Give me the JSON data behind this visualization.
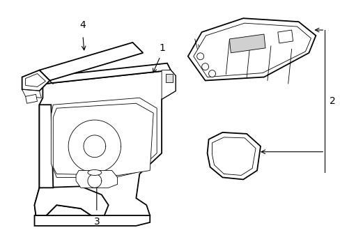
{
  "background_color": "#ffffff",
  "line_color": "#000000",
  "lw_main": 1.3,
  "lw_thin": 0.6,
  "lw_callout": 0.8,
  "label_fontsize": 10,
  "figsize": [
    4.89,
    3.6
  ],
  "dpi": 100
}
